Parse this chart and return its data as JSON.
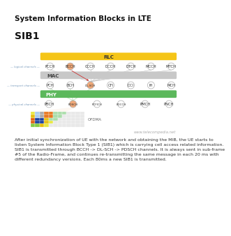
{
  "title": "System Information Blocks in LTE",
  "subtitle": "SIB1",
  "bg_color": "#ffffff",
  "rlc_color": "#f5c518",
  "mac_color": "#c8c8c8",
  "phy_color": "#5cb85c",
  "logical_nodes": [
    "PCCH",
    "BCCH",
    "CCCH",
    "DCCH",
    "DTCH",
    "MCCH",
    "MTCH"
  ],
  "transport_nodes": [
    "PCH",
    "BCH",
    "DL-SCH",
    "CFI",
    "DCI",
    "IH",
    "MCH"
  ],
  "physical_nodes": [
    "PBCH",
    "PDSCH",
    "PCFICH",
    "PDCCH",
    "PMCH",
    "PNCH"
  ],
  "highlight_logical": [
    1
  ],
  "highlight_transport": [
    2
  ],
  "highlight_physical": [
    1
  ],
  "node_color": "#ffffff",
  "highlight_color": "#f0a878",
  "watermark": "www.telecompedia.net",
  "body_text": "After initial synchronization of UE with the network and obtaining the MIB, the UE starts to\nlisten System Information Block Type 1 (SIB1) which is carrying cell access related information.\nSIB1 is transmitted through BCCH -> DL-SCH -> PDSCH channels. It is always sent in sub-frame\n#5 of the Radio-Frame, and continues re-transmitting the same message in each 20 ms with\ndifferent redundancy versions. Each 80ms a new SIB1 is transmitted.",
  "ofdma_label": "OFDMA",
  "ofdma_colors": [
    [
      "#e8e840",
      "#aaccee",
      "#aaaaaa",
      "#e87820",
      "#e87820",
      "#aaddaa",
      "#aaddaa",
      "#aaddaa",
      "#e8e8e8",
      "#e8e8e8",
      "#e8e8e8",
      "#e8e8e8"
    ],
    [
      "#e8c010",
      "#aaccee",
      "#aaaaaa",
      "#e87820",
      "#e87820",
      "#aaddaa",
      "#aaddaa",
      "#e8e8e8",
      "#e8e8e8",
      "#e8e8e8",
      "#e8e8e8",
      "#e8e8e8"
    ],
    [
      "#e06010",
      "#1840a0",
      "#1840a0",
      "#e8c010",
      "#aaddaa",
      "#aaddaa",
      "#e8e8e8",
      "#e8e8e8",
      "#e8e8e8",
      "#e8e8e8",
      "#e8e8e8",
      "#e8e8e8"
    ],
    [
      "#e06010",
      "#1840a0",
      "#1840a0",
      "#e8c010",
      "#e8e840",
      "#e8e8e8",
      "#e8e8e8",
      "#e8e8e8",
      "#e8e8e8",
      "#e8e8e8",
      "#e8e8e8",
      "#e8e8e8"
    ],
    [
      "#88cc44",
      "#88cc44",
      "#e8c010",
      "#e8e840",
      "#e8e8e8",
      "#e8e8e8",
      "#e8e8e8",
      "#e8e8e8",
      "#e8e8e8",
      "#e8e8e8",
      "#e8e8e8",
      "#e8e8e8"
    ]
  ]
}
